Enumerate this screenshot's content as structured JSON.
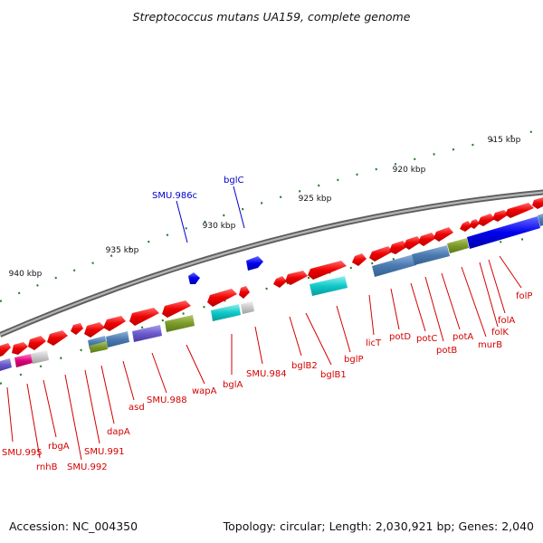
{
  "map": {
    "title": "Streptococcus mutans UA159, complete genome",
    "accession": "Accession: NC_004350",
    "summary": "Topology: circular; Length: 2,030,921 bp; Genes: 2,040"
  },
  "colors": {
    "backbone": "#8a8a8a",
    "forward_cds": "#e60000",
    "tick_mark": "#2b7d2b",
    "label_red": "#d40000",
    "label_blue": "#0000cc"
  },
  "scale_labels": [
    "940 kbp",
    "935 kbp",
    "930 kbp",
    "925 kbp",
    "920 kbp",
    "915 kbp"
  ],
  "genes": [
    {
      "name": "SMU.995",
      "color": "red"
    },
    {
      "name": "rnhB",
      "color": "red"
    },
    {
      "name": "rbgA",
      "color": "red"
    },
    {
      "name": "SMU.992",
      "color": "red"
    },
    {
      "name": "SMU.991",
      "color": "red"
    },
    {
      "name": "dapA",
      "color": "red"
    },
    {
      "name": "asd",
      "color": "red"
    },
    {
      "name": "SMU.988",
      "color": "red"
    },
    {
      "name": "wapA",
      "color": "red"
    },
    {
      "name": "SMU.986c",
      "color": "blue"
    },
    {
      "name": "bglA",
      "color": "red"
    },
    {
      "name": "bglC",
      "color": "blue"
    },
    {
      "name": "SMU.984",
      "color": "red"
    },
    {
      "name": "bglB2",
      "color": "red"
    },
    {
      "name": "bglB1",
      "color": "red"
    },
    {
      "name": "bglP",
      "color": "red"
    },
    {
      "name": "licT",
      "color": "red"
    },
    {
      "name": "potD",
      "color": "red"
    },
    {
      "name": "potC",
      "color": "red"
    },
    {
      "name": "potB",
      "color": "red"
    },
    {
      "name": "potA",
      "color": "red"
    },
    {
      "name": "murB",
      "color": "red"
    },
    {
      "name": "folK",
      "color": "red"
    },
    {
      "name": "folA",
      "color": "red"
    },
    {
      "name": "folP",
      "color": "red"
    }
  ]
}
